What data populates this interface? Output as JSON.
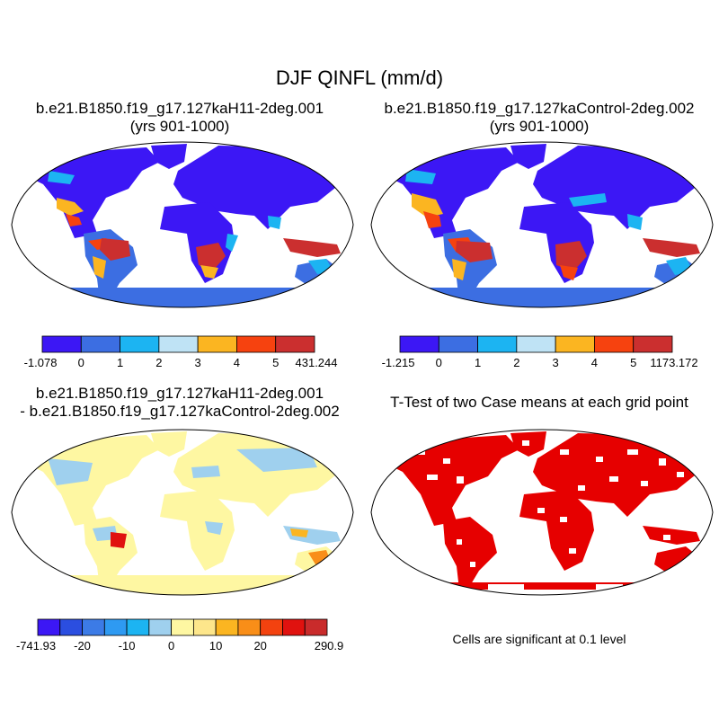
{
  "title": "DJF QINFL (mm/d)",
  "panels": [
    {
      "id": "case1",
      "title_line1": "b.e21.B1850.f19_g17.127kaH11-2deg.001",
      "title_line2": "(yrs 901-1000)",
      "colorbar": {
        "colors": [
          "#3c17f5",
          "#3c6ee2",
          "#1cb4f2",
          "#bfe3f5",
          "#fbb521",
          "#f6420f",
          "#cb2f2f"
        ],
        "labels": [
          "-1.078",
          "0",
          "1",
          "2",
          "3",
          "4",
          "5",
          "431.244"
        ]
      }
    },
    {
      "id": "case2",
      "title_line1": "b.e21.B1850.f19_g17.127kaControl-2deg.002",
      "title_line2": "(yrs 901-1000)",
      "colorbar": {
        "colors": [
          "#3c17f5",
          "#3c6ee2",
          "#1cb4f2",
          "#bfe3f5",
          "#fbb521",
          "#f6420f",
          "#cb2f2f"
        ],
        "labels": [
          "-1.215",
          "0",
          "1",
          "2",
          "3",
          "4",
          "5",
          "1173.172"
        ]
      }
    },
    {
      "id": "difference",
      "title_line1": "b.e21.B1850.f19_g17.127kaH11-2deg.001",
      "title_line2": "- b.e21.B1850.f19_g17.127kaControl-2deg.002",
      "colorbar": {
        "colors": [
          "#3c17f5",
          "#2b4ee0",
          "#3c7be6",
          "#2e9af2",
          "#1cb4f2",
          "#9fd0ee",
          "#fef7a2",
          "#fde68b",
          "#fbb521",
          "#f98e18",
          "#f3420f",
          "#e0120f",
          "#c92b2b"
        ],
        "labels": [
          "-741.93",
          "",
          "-20",
          "",
          "-10",
          "",
          "0",
          "",
          "10",
          "",
          "20",
          "",
          "",
          "290.9"
        ]
      }
    },
    {
      "id": "ttest",
      "title_line1": "T-Test of two Case means at each grid point",
      "note": "Cells are significant at 0.1 level"
    }
  ]
}
